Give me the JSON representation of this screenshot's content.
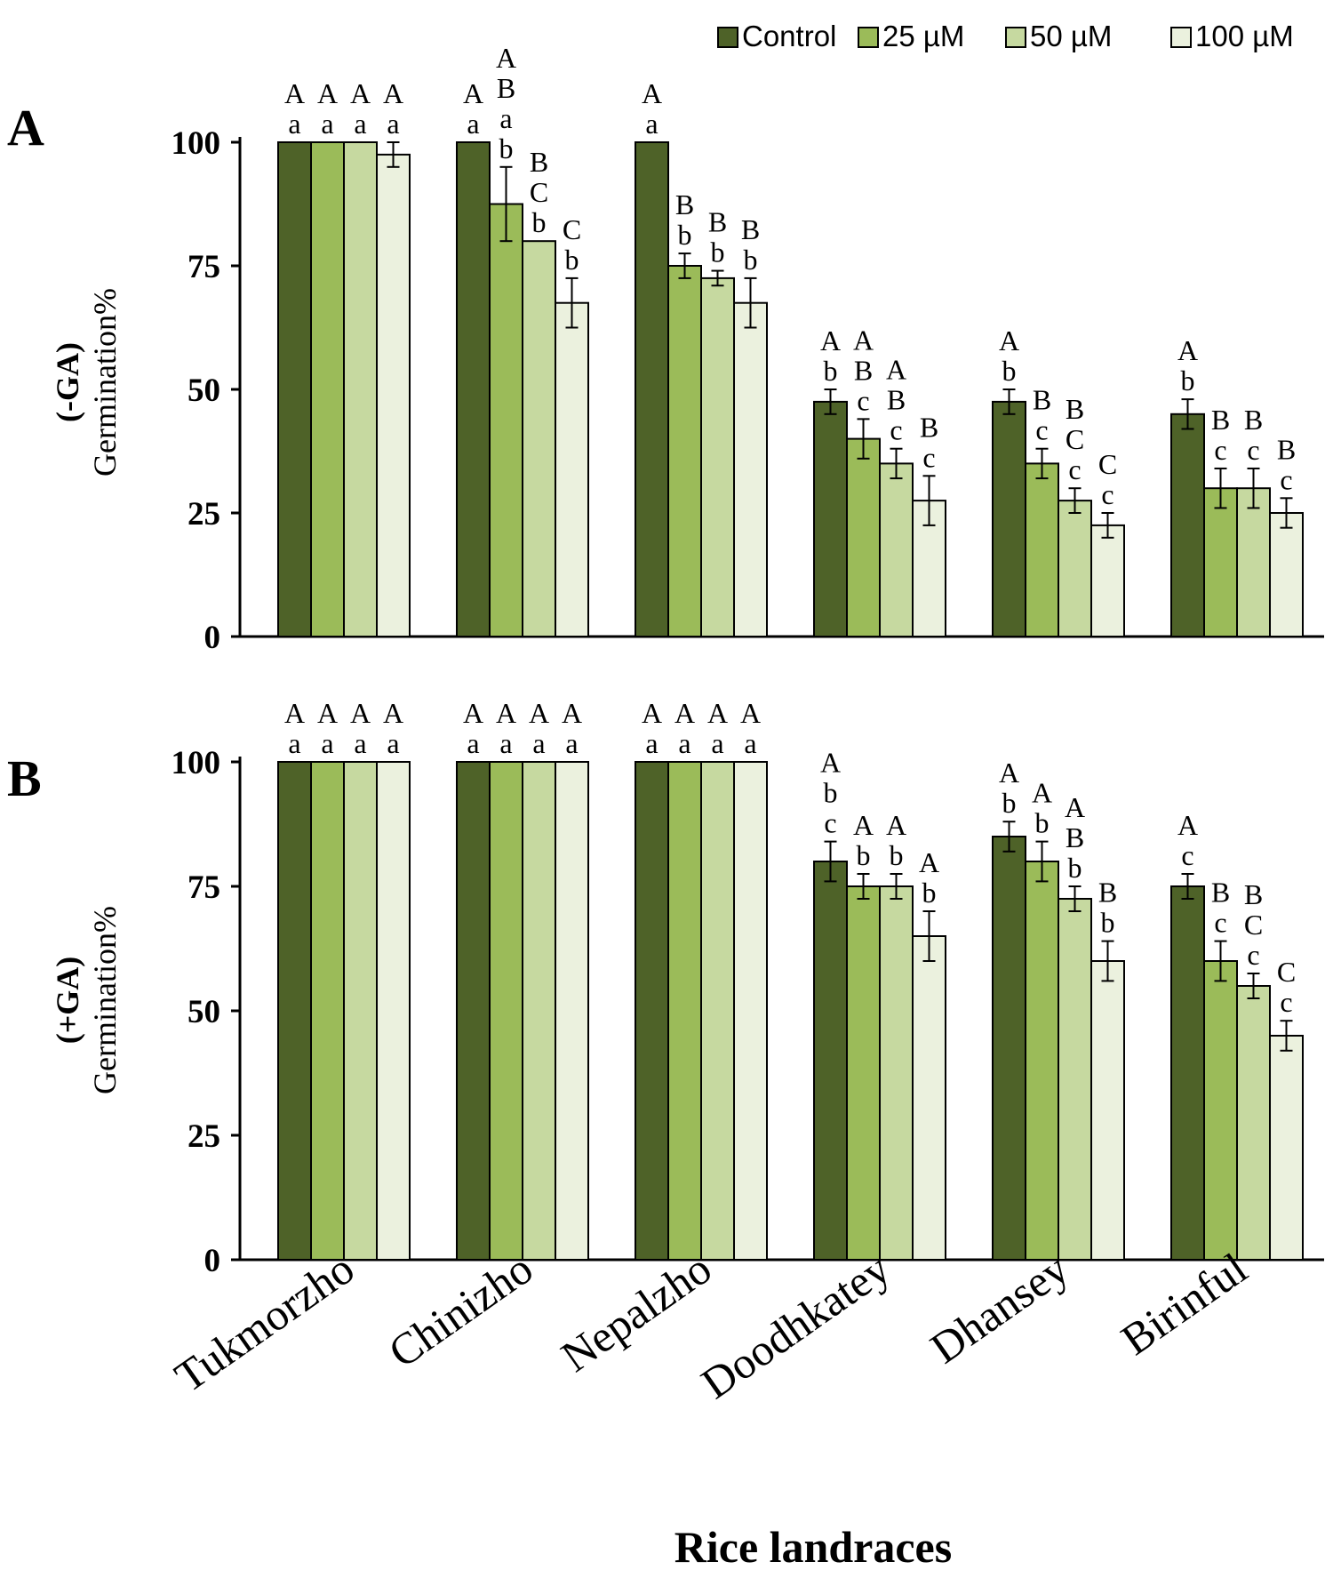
{
  "chart_data": {
    "type": "bar",
    "xlabel": "Rice landraces",
    "categories": [
      "Tukmorzho",
      "Chinizho",
      "Nepalzho",
      "Doodhkatey",
      "Dhansey",
      "Birinful"
    ],
    "series_names": [
      "Control",
      "25 µM",
      "50 µM",
      "100 µM"
    ],
    "colors": [
      "#4e6228",
      "#9bbb59",
      "#c6d9a0",
      "#ebf1de"
    ],
    "edge_color": "#000000",
    "ylim": [
      0,
      100
    ],
    "yticks": [
      "0",
      "25",
      "50",
      "75",
      "100"
    ],
    "panels": [
      {
        "panel_label": "A",
        "ylabel_line1": "(-GA)",
        "ylabel_line2": "Germination%",
        "series": [
          {
            "name": "Control",
            "values": [
              100,
              100,
              100,
              47.5,
              47.5,
              45
            ],
            "errors": [
              0,
              0,
              0,
              2.5,
              2.5,
              3
            ]
          },
          {
            "name": "25 µM",
            "values": [
              100,
              87.5,
              75,
              40,
              35,
              30
            ],
            "errors": [
              0,
              7.5,
              2.5,
              4,
              3,
              4
            ]
          },
          {
            "name": "50 µM",
            "values": [
              100,
              80,
              72.5,
              35,
              27.5,
              30
            ],
            "errors": [
              0,
              0,
              1.5,
              3,
              2.5,
              4
            ]
          },
          {
            "name": "100 µM",
            "values": [
              97.5,
              67.5,
              67.5,
              27.5,
              22.5,
              25
            ],
            "errors": [
              2.5,
              5,
              5,
              5,
              2.5,
              3
            ]
          }
        ],
        "letters": [
          [
            [
              "A",
              "a"
            ],
            [
              "A",
              "a"
            ],
            [
              "A",
              "a"
            ],
            [
              "A",
              "a"
            ]
          ],
          [
            [
              "A",
              "a"
            ],
            [
              "A",
              "B",
              "a",
              "b"
            ],
            [
              "B",
              "C",
              "b"
            ],
            [
              "C",
              "b"
            ]
          ],
          [
            [
              "A",
              "a"
            ],
            [
              "B",
              "b"
            ],
            [
              "B",
              "b"
            ],
            [
              "B",
              "b"
            ]
          ],
          [
            [
              "A",
              "b"
            ],
            [
              "A",
              "B",
              "c"
            ],
            [
              "A",
              "B",
              "c"
            ],
            [
              "B",
              "c"
            ]
          ],
          [
            [
              "A",
              "b"
            ],
            [
              "B",
              "c"
            ],
            [
              "B",
              "C",
              "c"
            ],
            [
              "C",
              "c"
            ]
          ],
          [
            [
              "A",
              "b"
            ],
            [
              "B",
              "c"
            ],
            [
              "B",
              "c"
            ],
            [
              "B",
              "c"
            ]
          ]
        ]
      },
      {
        "panel_label": "B",
        "ylabel_line1": "(+GA)",
        "ylabel_line2": "Germination%",
        "series": [
          {
            "name": "Control",
            "values": [
              100,
              100,
              100,
              80,
              85,
              75
            ],
            "errors": [
              0,
              0,
              0,
              4,
              3,
              2.5
            ]
          },
          {
            "name": "25 µM",
            "values": [
              100,
              100,
              100,
              75,
              80,
              60
            ],
            "errors": [
              0,
              0,
              0,
              2.5,
              4,
              4
            ]
          },
          {
            "name": "50 µM",
            "values": [
              100,
              100,
              100,
              75,
              72.5,
              55
            ],
            "errors": [
              0,
              0,
              0,
              2.5,
              2.5,
              2.5
            ]
          },
          {
            "name": "100 µM",
            "values": [
              100,
              100,
              100,
              65,
              60,
              45
            ],
            "errors": [
              0,
              0,
              0,
              5,
              4,
              3
            ]
          }
        ],
        "letters": [
          [
            [
              "A",
              "a"
            ],
            [
              "A",
              "a"
            ],
            [
              "A",
              "a"
            ],
            [
              "A",
              "a"
            ]
          ],
          [
            [
              "A",
              "a"
            ],
            [
              "A",
              "a"
            ],
            [
              "A",
              "a"
            ],
            [
              "A",
              "a"
            ]
          ],
          [
            [
              "A",
              "a"
            ],
            [
              "A",
              "a"
            ],
            [
              "A",
              "a"
            ],
            [
              "A",
              "a"
            ]
          ],
          [
            [
              "A",
              "b",
              "c"
            ],
            [
              "A",
              "b"
            ],
            [
              "A",
              "b"
            ],
            [
              "A",
              "b"
            ]
          ],
          [
            [
              "A",
              "b"
            ],
            [
              "A",
              "b"
            ],
            [
              "A",
              "B",
              "b"
            ],
            [
              "B",
              "b"
            ]
          ],
          [
            [
              "A",
              "c"
            ],
            [
              "B",
              "c"
            ],
            [
              "B",
              "C",
              "c"
            ],
            [
              "C",
              "c"
            ]
          ]
        ]
      }
    ]
  }
}
